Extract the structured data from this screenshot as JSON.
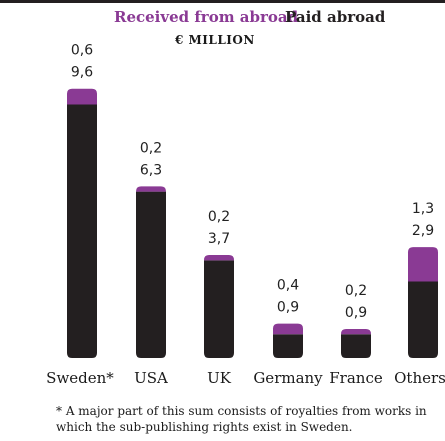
{
  "colors": {
    "received": "#8a3a94",
    "paid": "#231f20",
    "top_rule": "#231f20"
  },
  "chart_data": {
    "type": "bar",
    "stacked": true,
    "unit": "€ MILLION",
    "categories": [
      "Sweden*",
      "USA",
      "UK",
      "Germany",
      "France",
      "Others"
    ],
    "series": [
      {
        "name": "Received from abroad",
        "values": [
          0.6,
          0.2,
          0.2,
          0.4,
          0.2,
          1.3
        ]
      },
      {
        "name": "Paid abroad",
        "values": [
          9.6,
          6.3,
          3.7,
          0.9,
          0.9,
          2.9
        ]
      }
    ],
    "value_labels": {
      "received": [
        "0,6",
        "0,2",
        "0,2",
        "0,4",
        "0,2",
        "1,3"
      ],
      "paid": [
        "9,6",
        "6,3",
        "3,7",
        "0,9",
        "0,9",
        "2,9"
      ]
    },
    "footnote": "* A major part of this sum consists of royalties from works in which the sub-publishing rights exist in Sweden."
  }
}
